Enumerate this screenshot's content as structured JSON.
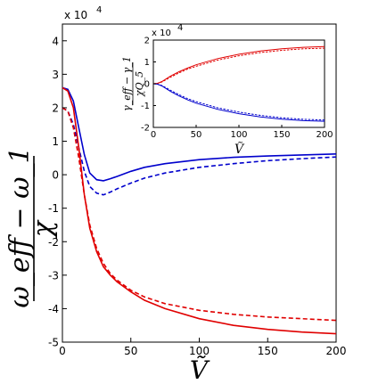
{
  "chart_data": [
    {
      "type": "line",
      "exponent_label": "x 10",
      "exponent_power": "4",
      "ylabel_numerator": "ω_eff − ω_1",
      "ylabel_denominator": "χ",
      "xlabel": "Ṽ",
      "xlim": [
        0,
        200
      ],
      "ylim": [
        -5,
        4.5
      ],
      "xticks": [
        0,
        50,
        100,
        150,
        200
      ],
      "yticks": [
        -5,
        -4,
        -3,
        -2,
        -1,
        0,
        1,
        2,
        3,
        4
      ],
      "series": [
        {
          "color": "#0000cc",
          "style": "solid",
          "x": [
            0,
            4,
            8,
            12,
            16,
            20,
            25,
            30,
            35,
            40,
            50,
            60,
            75,
            100,
            125,
            150,
            175,
            200
          ],
          "y": [
            2.6,
            2.55,
            2.2,
            1.4,
            0.6,
            0.05,
            -0.15,
            -0.18,
            -0.12,
            -0.05,
            0.1,
            0.22,
            0.33,
            0.45,
            0.52,
            0.56,
            0.59,
            0.62
          ]
        },
        {
          "color": "#0000cc",
          "style": "dashed",
          "x": [
            0,
            4,
            8,
            12,
            16,
            20,
            25,
            30,
            35,
            40,
            50,
            60,
            75,
            100,
            125,
            150,
            175,
            200
          ],
          "y": [
            2.0,
            1.9,
            1.5,
            0.8,
            0.1,
            -0.35,
            -0.55,
            -0.6,
            -0.52,
            -0.42,
            -0.25,
            -0.1,
            0.05,
            0.22,
            0.33,
            0.42,
            0.48,
            0.53
          ]
        },
        {
          "color": "#e00000",
          "style": "solid",
          "x": [
            0,
            4,
            8,
            12,
            16,
            20,
            25,
            30,
            35,
            40,
            50,
            60,
            75,
            100,
            125,
            150,
            175,
            200
          ],
          "y": [
            2.6,
            2.5,
            2.0,
            0.8,
            -0.6,
            -1.6,
            -2.3,
            -2.75,
            -3.0,
            -3.2,
            -3.5,
            -3.75,
            -4.0,
            -4.3,
            -4.5,
            -4.62,
            -4.7,
            -4.75
          ]
        },
        {
          "color": "#e00000",
          "style": "dashed",
          "x": [
            0,
            4,
            8,
            12,
            16,
            20,
            25,
            30,
            35,
            40,
            50,
            60,
            75,
            100,
            125,
            150,
            175,
            200
          ],
          "y": [
            2.0,
            1.9,
            1.4,
            0.5,
            -0.6,
            -1.5,
            -2.2,
            -2.65,
            -2.95,
            -3.15,
            -3.45,
            -3.65,
            -3.85,
            -4.05,
            -4.17,
            -4.25,
            -4.3,
            -4.35
          ]
        }
      ]
    },
    {
      "type": "line",
      "exponent_label": "x 10",
      "exponent_power": "4",
      "ylabel_numerator": "γ_eff − γ_1",
      "ylabel_denominator": "χQ_5",
      "xlabel": "Ṽ",
      "xlim": [
        0,
        200
      ],
      "ylim": [
        -2,
        2
      ],
      "xticks": [
        0,
        50,
        100,
        150,
        200
      ],
      "yticks": [
        -2,
        -1,
        0,
        1,
        2
      ],
      "series": [
        {
          "color": "#e00000",
          "style": "solid",
          "x": [
            0,
            5,
            10,
            20,
            30,
            40,
            50,
            75,
            100,
            125,
            150,
            175,
            200
          ],
          "y": [
            0,
            0.02,
            0.1,
            0.35,
            0.55,
            0.72,
            0.87,
            1.15,
            1.35,
            1.5,
            1.6,
            1.67,
            1.7
          ]
        },
        {
          "color": "#e00000",
          "style": "dashed",
          "x": [
            0,
            5,
            10,
            20,
            30,
            40,
            50,
            75,
            100,
            125,
            150,
            175,
            200
          ],
          "y": [
            0,
            0.02,
            0.08,
            0.3,
            0.5,
            0.67,
            0.8,
            1.08,
            1.28,
            1.43,
            1.53,
            1.6,
            1.63
          ]
        },
        {
          "color": "#0000cc",
          "style": "solid",
          "x": [
            0,
            5,
            10,
            20,
            30,
            40,
            50,
            75,
            100,
            125,
            150,
            175,
            200
          ],
          "y": [
            0,
            -0.02,
            -0.1,
            -0.35,
            -0.56,
            -0.74,
            -0.89,
            -1.17,
            -1.37,
            -1.52,
            -1.62,
            -1.69,
            -1.72
          ]
        },
        {
          "color": "#0000cc",
          "style": "dashed",
          "x": [
            0,
            5,
            10,
            20,
            30,
            40,
            50,
            75,
            100,
            125,
            150,
            175,
            200
          ],
          "y": [
            0,
            -0.02,
            -0.08,
            -0.3,
            -0.5,
            -0.68,
            -0.82,
            -1.1,
            -1.3,
            -1.45,
            -1.56,
            -1.63,
            -1.66
          ]
        }
      ]
    }
  ]
}
